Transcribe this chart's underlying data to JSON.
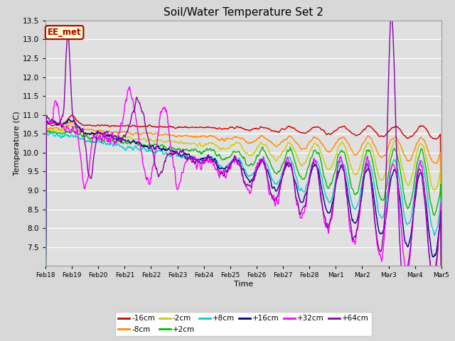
{
  "title": "Soil/Water Temperature Set 2",
  "xlabel": "Time",
  "ylabel": "Temperature (C)",
  "ylim": [
    7.0,
    13.5
  ],
  "yticks": [
    7.5,
    8.0,
    8.5,
    9.0,
    9.5,
    10.0,
    10.5,
    11.0,
    11.5,
    12.0,
    12.5,
    13.0,
    13.5
  ],
  "bg_color": "#d8d8d8",
  "plot_bg": "#e0e0e0",
  "grid_color": "#ffffff",
  "annotation": "EE_met",
  "annotation_bg": "#ffffcc",
  "annotation_border": "#aa0000",
  "series": [
    {
      "label": "-16cm",
      "color": "#cc0000"
    },
    {
      "label": "-8cm",
      "color": "#ff8800"
    },
    {
      "label": "-2cm",
      "color": "#cccc00"
    },
    {
      "label": "+2cm",
      "color": "#00bb00"
    },
    {
      "label": "+8cm",
      "color": "#00cccc"
    },
    {
      "label": "+16cm",
      "color": "#000080"
    },
    {
      "label": "+32cm",
      "color": "#ff00ff"
    },
    {
      "label": "+64cm",
      "color": "#8800aa"
    }
  ],
  "xtick_labels": [
    "Feb 18",
    "Feb 19",
    "Feb 20",
    "Feb 21",
    "Feb 22",
    "Feb 23",
    "Feb 24",
    "Feb 25",
    "Feb 26",
    "Feb 27",
    "Feb 28",
    "Mar 1",
    "Mar 2",
    "Mar 3",
    "Mar 4",
    "Mar 5"
  ],
  "n_days": 15,
  "n_points": 800
}
